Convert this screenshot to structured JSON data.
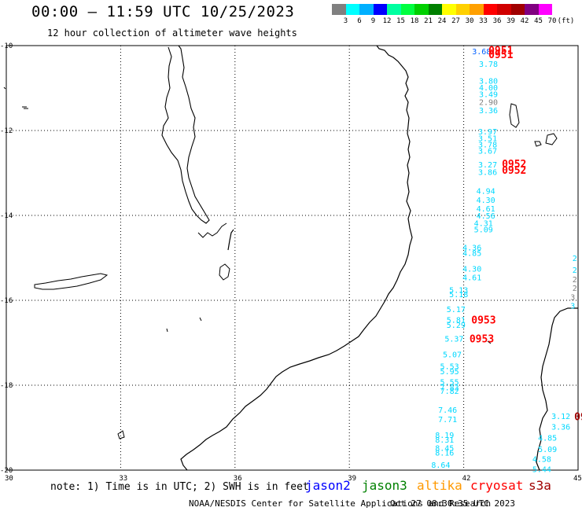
{
  "header": {
    "title": "00:00 – 11:59 UTC 10/25/2023",
    "subtitle": "12 hour collection of altimeter wave heights"
  },
  "colorbar": {
    "colors": [
      "#808080",
      "#00ffff",
      "#00b0ff",
      "#0000ff",
      "#00ffa0",
      "#00ff40",
      "#00d000",
      "#008000",
      "#ffff00",
      "#ffd000",
      "#ffa000",
      "#ff0000",
      "#d00000",
      "#a00000",
      "#800080",
      "#ff00ff",
      "#ffffff"
    ],
    "labels": [
      "3",
      "6",
      "9",
      "12",
      "15",
      "18",
      "21",
      "24",
      "27",
      "30",
      "33",
      "36",
      "39",
      "42",
      "45",
      "70",
      "(ft)"
    ]
  },
  "map": {
    "lat_labels": [
      "-10",
      "-12",
      "-14",
      "-16",
      "-18",
      "-20"
    ],
    "lon_labels": [
      "30",
      "33",
      "36",
      "39",
      "42",
      "45"
    ],
    "grid_lats": [
      -12,
      -14,
      -16,
      -18
    ],
    "grid_lons": [
      33,
      36,
      39,
      42
    ],
    "track_points": [
      {
        "text": "3.68",
        "lon": 42.22,
        "lat": -10.13,
        "color": "#0060ff"
      },
      {
        "text": "3.78",
        "lon": 42.4,
        "lat": -10.43,
        "color": "#00d8ff"
      },
      {
        "text": "3.80",
        "lon": 42.4,
        "lat": -10.82,
        "color": "#00d8ff"
      },
      {
        "text": "4.00",
        "lon": 42.4,
        "lat": -10.98,
        "color": "#00d8ff"
      },
      {
        "text": "3.49",
        "lon": 42.4,
        "lat": -11.14,
        "color": "#00d8ff"
      },
      {
        "text": "2.90",
        "lon": 42.4,
        "lat": -11.32,
        "color": "#808080"
      },
      {
        "text": "3.36",
        "lon": 42.4,
        "lat": -11.52,
        "color": "#00d8ff"
      },
      {
        "text": "3.97",
        "lon": 42.38,
        "lat": -12.02,
        "color": "#00d8ff"
      },
      {
        "text": "3.51",
        "lon": 42.38,
        "lat": -12.18,
        "color": "#00d8ff"
      },
      {
        "text": "3.78",
        "lon": 42.38,
        "lat": -12.32,
        "color": "#00d8ff"
      },
      {
        "text": "3.67",
        "lon": 42.38,
        "lat": -12.47,
        "color": "#00d8ff"
      },
      {
        "text": "3.27",
        "lon": 42.38,
        "lat": -12.8,
        "color": "#00d8ff"
      },
      {
        "text": "3.86",
        "lon": 42.38,
        "lat": -12.97,
        "color": "#00d8ff"
      },
      {
        "text": "4.94",
        "lon": 42.33,
        "lat": -13.42,
        "color": "#00d8ff"
      },
      {
        "text": "4.30",
        "lon": 42.33,
        "lat": -13.63,
        "color": "#00d8ff"
      },
      {
        "text": "4.61",
        "lon": 42.33,
        "lat": -13.83,
        "color": "#00d8ff"
      },
      {
        "text": "4.56",
        "lon": 42.33,
        "lat": -14.0,
        "color": "#00d8ff"
      },
      {
        "text": "4.31",
        "lon": 42.27,
        "lat": -14.18,
        "color": "#00d8ff"
      },
      {
        "text": "5.09",
        "lon": 42.27,
        "lat": -14.32,
        "color": "#00d8ff"
      },
      {
        "text": "4.36",
        "lon": 41.97,
        "lat": -14.75,
        "color": "#00d8ff"
      },
      {
        "text": "4.85",
        "lon": 41.97,
        "lat": -14.88,
        "color": "#00d8ff"
      },
      {
        "text": "4.30",
        "lon": 41.97,
        "lat": -15.25,
        "color": "#00d8ff"
      },
      {
        "text": "4.61",
        "lon": 41.97,
        "lat": -15.45,
        "color": "#00d8ff"
      },
      {
        "text": "5.13",
        "lon": 41.62,
        "lat": -15.75,
        "color": "#00d8ff"
      },
      {
        "text": "5.18",
        "lon": 41.62,
        "lat": -15.85,
        "color": "#00d8ff"
      },
      {
        "text": "5.17",
        "lon": 41.55,
        "lat": -16.2,
        "color": "#00d8ff"
      },
      {
        "text": "5.81",
        "lon": 41.55,
        "lat": -16.45,
        "color": "#00d8ff"
      },
      {
        "text": "5.29",
        "lon": 41.55,
        "lat": -16.57,
        "color": "#00d8ff"
      },
      {
        "text": "5.37",
        "lon": 41.5,
        "lat": -16.9,
        "color": "#00d8ff"
      },
      {
        "text": "5.07",
        "lon": 41.45,
        "lat": -17.27,
        "color": "#00d8ff"
      },
      {
        "text": "5.53",
        "lon": 41.38,
        "lat": -17.55,
        "color": "#00d8ff"
      },
      {
        "text": "5.95",
        "lon": 41.38,
        "lat": -17.67,
        "color": "#00d8ff"
      },
      {
        "text": "5.55",
        "lon": 41.38,
        "lat": -17.92,
        "color": "#00d8ff"
      },
      {
        "text": "7.83",
        "lon": 41.38,
        "lat": -18.05,
        "color": "#00d8ff"
      },
      {
        "text": "7.82",
        "lon": 41.38,
        "lat": -18.13,
        "color": "#00d8ff"
      },
      {
        "text": "7.46",
        "lon": 41.33,
        "lat": -18.57,
        "color": "#00d8ff"
      },
      {
        "text": "7.71",
        "lon": 41.33,
        "lat": -18.8,
        "color": "#00d8ff"
      },
      {
        "text": "8.19",
        "lon": 41.25,
        "lat": -19.17,
        "color": "#00d8ff"
      },
      {
        "text": "8.31",
        "lon": 41.25,
        "lat": -19.28,
        "color": "#00d8ff"
      },
      {
        "text": "8.45",
        "lon": 41.25,
        "lat": -19.47,
        "color": "#00d8ff"
      },
      {
        "text": "8.16",
        "lon": 41.25,
        "lat": -19.58,
        "color": "#00d8ff"
      },
      {
        "text": "8.64",
        "lon": 41.15,
        "lat": -19.87,
        "color": "#00d8ff"
      },
      {
        "text": "3.12",
        "lon": 44.3,
        "lat": -18.72,
        "color": "#00d8ff"
      },
      {
        "text": "3.36",
        "lon": 44.3,
        "lat": -18.97,
        "color": "#00d8ff"
      },
      {
        "text": "4.85",
        "lon": 43.95,
        "lat": -19.23,
        "color": "#00d8ff"
      },
      {
        "text": "5.09",
        "lon": 43.95,
        "lat": -19.5,
        "color": "#00d8ff"
      },
      {
        "text": "4.58",
        "lon": 43.8,
        "lat": -19.73,
        "color": "#00d8ff"
      },
      {
        "text": "5.44",
        "lon": 43.8,
        "lat": -19.97,
        "color": "#00d8ff"
      },
      {
        "text": "2",
        "lon": 44.85,
        "lat": -15.0,
        "color": "#00d8ff"
      },
      {
        "text": "2",
        "lon": 44.85,
        "lat": -15.28,
        "color": "#00d8ff"
      },
      {
        "text": "2",
        "lon": 44.85,
        "lat": -15.5,
        "color": "#808080"
      },
      {
        "text": "2",
        "lon": 44.85,
        "lat": -15.7,
        "color": "#808080"
      },
      {
        "text": "3",
        "lon": 44.8,
        "lat": -15.92,
        "color": "#808080"
      },
      {
        "text": "3",
        "lon": 44.8,
        "lat": -16.12,
        "color": "#00d8ff"
      }
    ],
    "time_stamps": [
      {
        "text": "0951",
        "lon": 42.65,
        "lat": -10.1,
        "color": "#ff0000"
      },
      {
        "text": "0951",
        "lon": 42.65,
        "lat": -10.2,
        "color": "#ff0000"
      },
      {
        "text": "0952",
        "lon": 43.0,
        "lat": -12.78,
        "color": "#ff0000"
      },
      {
        "text": "0952",
        "lon": 43.0,
        "lat": -12.93,
        "color": "#ff0000"
      },
      {
        "text": "0953",
        "lon": 42.2,
        "lat": -16.45,
        "color": "#ff0000"
      },
      {
        "text": "0953",
        "lon": 42.15,
        "lat": -16.9,
        "color": "#ff0000"
      },
      {
        "text": "09",
        "lon": 44.9,
        "lat": -18.73,
        "color": "#a00000"
      }
    ]
  },
  "note": "note: 1) Time is in UTC; 2) SWH is in feet",
  "satellites": [
    {
      "name": "jason2",
      "color": "#0000ff"
    },
    {
      "name": "jason3",
      "color": "#008000"
    },
    {
      "name": "altika",
      "color": "#ff9900"
    },
    {
      "name": "cryosat",
      "color": "#ff0000"
    },
    {
      "name": "s3a",
      "color": "#a00000"
    }
  ],
  "footer": {
    "credit": "NOAA/NESDIS Center for Satellite Applications and Research",
    "timestamp": "Oct 27 08:30:35 UTC 2023"
  }
}
